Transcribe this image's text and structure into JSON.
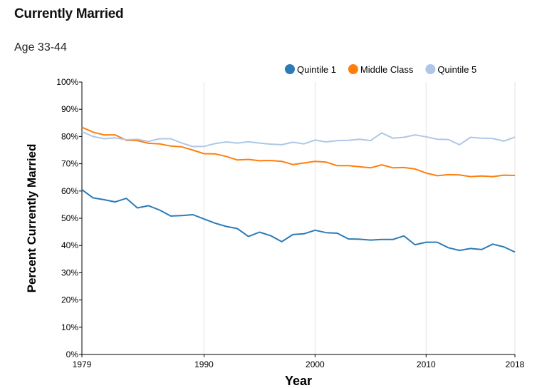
{
  "chart_data": {
    "type": "line",
    "title": "Currently Married",
    "subtitle": "Age 33-44",
    "xlabel": "Year",
    "ylabel": "Percent Currently Married",
    "xlim": [
      1979,
      2018
    ],
    "ylim": [
      0,
      100
    ],
    "x_ticks": [
      1979,
      1990,
      2000,
      2010,
      2018
    ],
    "y_ticks": [
      0,
      10,
      20,
      30,
      40,
      50,
      60,
      70,
      80,
      90,
      100
    ],
    "y_tick_suffix": "%",
    "grid": "vertical",
    "legend_position": "top-right",
    "x": [
      1979,
      1980,
      1981,
      1982,
      1983,
      1984,
      1985,
      1986,
      1987,
      1988,
      1989,
      1990,
      1991,
      1992,
      1993,
      1994,
      1995,
      1996,
      1997,
      1998,
      1999,
      2000,
      2001,
      2002,
      2003,
      2004,
      2005,
      2006,
      2007,
      2008,
      2009,
      2010,
      2011,
      2012,
      2013,
      2014,
      2015,
      2016,
      2017,
      2018
    ],
    "series": [
      {
        "name": "Quintile 1",
        "color": "#2c7bb6",
        "values": [
          60.5,
          57.5,
          56.8,
          56.0,
          57.3,
          53.8,
          54.6,
          53.0,
          50.8,
          51.0,
          51.3,
          49.7,
          48.2,
          47.0,
          46.2,
          43.3,
          44.9,
          43.6,
          41.4,
          44.0,
          44.3,
          45.6,
          44.7,
          44.5,
          42.4,
          42.3,
          42.0,
          42.2,
          42.2,
          43.5,
          40.3,
          41.2,
          41.2,
          39.2,
          38.2,
          38.9,
          38.5,
          40.5,
          39.5,
          37.6
        ]
      },
      {
        "name": "Middle Class",
        "color": "#ff7f0e",
        "values": [
          83.4,
          81.6,
          80.6,
          80.6,
          78.6,
          78.5,
          77.5,
          77.3,
          76.5,
          76.2,
          75.0,
          73.7,
          73.6,
          72.7,
          71.4,
          71.6,
          71.1,
          71.2,
          70.9,
          69.7,
          70.3,
          70.9,
          70.6,
          69.3,
          69.3,
          68.9,
          68.5,
          69.6,
          68.5,
          68.6,
          68.1,
          66.6,
          65.6,
          66.0,
          65.9,
          65.3,
          65.5,
          65.3,
          65.8,
          65.7
        ]
      },
      {
        "name": "Quintile 5",
        "color": "#aec7e8",
        "values": [
          81.8,
          80.0,
          79.2,
          79.5,
          78.8,
          79.0,
          78.2,
          79.2,
          79.2,
          77.6,
          76.3,
          76.4,
          77.4,
          78.0,
          77.6,
          78.1,
          77.6,
          77.2,
          77.0,
          77.9,
          77.3,
          78.7,
          78.0,
          78.5,
          78.6,
          79.0,
          78.5,
          81.3,
          79.4,
          79.7,
          80.6,
          79.9,
          79.0,
          78.9,
          77.0,
          79.7,
          79.4,
          79.3,
          78.3,
          79.8
        ]
      }
    ]
  }
}
